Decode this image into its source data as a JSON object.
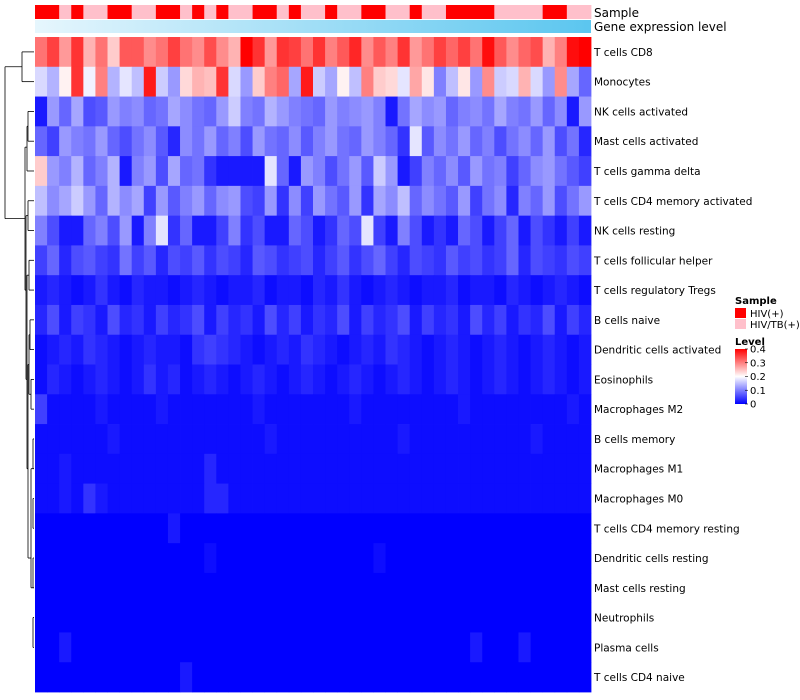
{
  "chart_data": {
    "type": "heatmap",
    "title": "",
    "rows": [
      "T cells CD8",
      "Monocytes",
      "NK cells activated",
      "Mast cells activated",
      "T cells gamma delta",
      "T cells CD4 memory activated",
      "NK cells resting",
      "T cells follicular helper",
      "T cells regulatory  Tregs",
      "B cells naive",
      "Dendritic cells activated",
      "Eosinophils",
      "Macrophages M2",
      "B cells memory",
      "Macrophages M1",
      "Macrophages M0",
      "T cells CD4 memory resting",
      "Dendritic cells resting",
      "Mast cells resting",
      "Neutrophils",
      "Plasma cells",
      "T cells CD4 naive"
    ],
    "n_columns": 46,
    "color_scale": {
      "title": "Level",
      "min": 0,
      "max": 0.4,
      "ticks": [
        "0.4",
        "0.3",
        "0.2",
        "0.1",
        "0"
      ],
      "low_color": "#0000ff",
      "mid_color": "#ffffff",
      "high_color": "#ff0000"
    },
    "annotations": {
      "sample": {
        "label": "Sample",
        "legend_title": "Sample",
        "categories": [
          {
            "name": "HIV(+)",
            "color": "#ff0000"
          },
          {
            "name": "HIV/TB(+)",
            "color": "#ffc0cb"
          }
        ],
        "values": [
          1,
          1,
          0,
          1,
          0,
          0,
          1,
          1,
          0,
          0,
          1,
          1,
          0,
          1,
          0,
          1,
          0,
          0,
          1,
          1,
          0,
          1,
          0,
          0,
          1,
          0,
          0,
          1,
          1,
          0,
          0,
          1,
          0,
          0,
          1,
          1,
          1,
          1,
          0,
          0,
          0,
          0,
          1,
          1,
          0,
          0
        ]
      },
      "expression": {
        "label": "Gene expression level",
        "color_start": "#e6f6fd",
        "color_end": "#5bc6ef"
      }
    },
    "row_levels": [
      [
        0.31,
        0.35,
        0.28,
        0.36,
        0.26,
        0.31,
        0.24,
        0.33,
        0.33,
        0.29,
        0.31,
        0.35,
        0.31,
        0.29,
        0.34,
        0.29,
        0.26,
        0.41,
        0.36,
        0.28,
        0.36,
        0.35,
        0.31,
        0.36,
        0.3,
        0.33,
        0.37,
        0.29,
        0.33,
        0.3,
        0.36,
        0.28,
        0.31,
        0.35,
        0.32,
        0.35,
        0.31,
        0.39,
        0.33,
        0.29,
        0.32,
        0.34,
        0.26,
        0.3,
        0.39,
        0.4
      ],
      [
        0.17,
        0.14,
        0.21,
        0.36,
        0.19,
        0.3,
        0.14,
        0.18,
        0.15,
        0.38,
        0.16,
        0.12,
        0.23,
        0.26,
        0.25,
        0.36,
        0.17,
        0.12,
        0.24,
        0.3,
        0.32,
        0.13,
        0.38,
        0.16,
        0.13,
        0.21,
        0.15,
        0.3,
        0.24,
        0.23,
        0.18,
        0.27,
        0.22,
        0.1,
        0.15,
        0.22,
        0.12,
        0.29,
        0.16,
        0.17,
        0.26,
        0.17,
        0.12,
        0.29,
        0.13,
        0.08
      ],
      [
        0.02,
        0.12,
        0.08,
        0.13,
        0.06,
        0.07,
        0.12,
        0.1,
        0.11,
        0.08,
        0.09,
        0.13,
        0.11,
        0.09,
        0.08,
        0.12,
        0.16,
        0.1,
        0.09,
        0.14,
        0.12,
        0.1,
        0.09,
        0.08,
        0.12,
        0.1,
        0.11,
        0.12,
        0.1,
        0.02,
        0.09,
        0.13,
        0.11,
        0.12,
        0.08,
        0.1,
        0.11,
        0.09,
        0.13,
        0.1,
        0.09,
        0.12,
        0.08,
        0.11,
        0.02,
        0.12
      ],
      [
        0.08,
        0.05,
        0.12,
        0.1,
        0.09,
        0.12,
        0.08,
        0.06,
        0.09,
        0.11,
        0.07,
        0.03,
        0.11,
        0.09,
        0.12,
        0.08,
        0.1,
        0.06,
        0.12,
        0.09,
        0.08,
        0.11,
        0.07,
        0.1,
        0.12,
        0.09,
        0.08,
        0.12,
        0.1,
        0.08,
        0.04,
        0.18,
        0.07,
        0.11,
        0.09,
        0.12,
        0.08,
        0.1,
        0.06,
        0.09,
        0.11,
        0.08,
        0.12,
        0.06,
        0.09,
        0.03
      ],
      [
        0.24,
        0.12,
        0.1,
        0.14,
        0.08,
        0.1,
        0.14,
        0.02,
        0.1,
        0.12,
        0.06,
        0.13,
        0.08,
        0.09,
        0.04,
        0.02,
        0.02,
        0.02,
        0.02,
        0.18,
        0.08,
        0.02,
        0.12,
        0.1,
        0.06,
        0.09,
        0.12,
        0.07,
        0.16,
        0.12,
        0.02,
        0.05,
        0.1,
        0.08,
        0.11,
        0.07,
        0.12,
        0.09,
        0.1,
        0.05,
        0.08,
        0.11,
        0.12,
        0.09,
        0.07,
        0.05
      ],
      [
        0.15,
        0.11,
        0.13,
        0.16,
        0.12,
        0.08,
        0.14,
        0.11,
        0.13,
        0.05,
        0.12,
        0.07,
        0.1,
        0.12,
        0.08,
        0.11,
        0.12,
        0.06,
        0.05,
        0.12,
        0.04,
        0.11,
        0.05,
        0.12,
        0.09,
        0.07,
        0.12,
        0.04,
        0.13,
        0.11,
        0.15,
        0.08,
        0.11,
        0.09,
        0.07,
        0.12,
        0.05,
        0.09,
        0.11,
        0.03,
        0.1,
        0.08,
        0.12,
        0.06,
        0.09,
        0.12
      ],
      [
        0.1,
        0.06,
        0.02,
        0.02,
        0.08,
        0.1,
        0.06,
        0.12,
        0.02,
        0.1,
        0.18,
        0.04,
        0.08,
        0.02,
        0.02,
        0.05,
        0.1,
        0.04,
        0.06,
        0.02,
        0.02,
        0.08,
        0.06,
        0.02,
        0.04,
        0.08,
        0.06,
        0.18,
        0.05,
        0.02,
        0.1,
        0.06,
        0.02,
        0.04,
        0.02,
        0.08,
        0.06,
        0.02,
        0.05,
        0.08,
        0.02,
        0.06,
        0.04,
        0.02,
        0.05,
        0.02
      ],
      [
        0.05,
        0.08,
        0.03,
        0.06,
        0.07,
        0.05,
        0.04,
        0.09,
        0.05,
        0.07,
        0.03,
        0.06,
        0.05,
        0.07,
        0.04,
        0.06,
        0.05,
        0.03,
        0.07,
        0.06,
        0.04,
        0.05,
        0.06,
        0.03,
        0.05,
        0.07,
        0.04,
        0.06,
        0.08,
        0.05,
        0.03,
        0.06,
        0.05,
        0.04,
        0.07,
        0.05,
        0.06,
        0.04,
        0.05,
        0.08,
        0.03,
        0.06,
        0.05,
        0.04,
        0.06,
        0.05
      ],
      [
        0.02,
        0.03,
        0.02,
        0.01,
        0.02,
        0.04,
        0.02,
        0.01,
        0.03,
        0.02,
        0.02,
        0.01,
        0.02,
        0.03,
        0.02,
        0.01,
        0.02,
        0.02,
        0.03,
        0.01,
        0.02,
        0.02,
        0.01,
        0.03,
        0.02,
        0.04,
        0.02,
        0.01,
        0.02,
        0.03,
        0.02,
        0.01,
        0.02,
        0.02,
        0.03,
        0.01,
        0.02,
        0.02,
        0.01,
        0.03,
        0.02,
        0.01,
        0.02,
        0.03,
        0.02,
        0.01
      ],
      [
        0.03,
        0.06,
        0.02,
        0.05,
        0.04,
        0.02,
        0.06,
        0.03,
        0.04,
        0.02,
        0.05,
        0.03,
        0.04,
        0.06,
        0.02,
        0.05,
        0.03,
        0.04,
        0.02,
        0.06,
        0.03,
        0.05,
        0.02,
        0.04,
        0.03,
        0.06,
        0.02,
        0.05,
        0.03,
        0.04,
        0.06,
        0.02,
        0.05,
        0.03,
        0.04,
        0.02,
        0.06,
        0.03,
        0.05,
        0.02,
        0.04,
        0.03,
        0.06,
        0.02,
        0.05,
        0.03
      ],
      [
        0.01,
        0.02,
        0.03,
        0.02,
        0.04,
        0.03,
        0.02,
        0.01,
        0.02,
        0.03,
        0.02,
        0.02,
        0.01,
        0.04,
        0.05,
        0.04,
        0.03,
        0.02,
        0.01,
        0.02,
        0.03,
        0.02,
        0.04,
        0.03,
        0.02,
        0.01,
        0.02,
        0.03,
        0.02,
        0.04,
        0.03,
        0.02,
        0.01,
        0.02,
        0.03,
        0.02,
        0.01,
        0.02,
        0.03,
        0.02,
        0.01,
        0.02,
        0.03,
        0.02,
        0.01,
        0.02
      ],
      [
        0.01,
        0.03,
        0.02,
        0.01,
        0.02,
        0.03,
        0.02,
        0.01,
        0.02,
        0.04,
        0.02,
        0.03,
        0.01,
        0.02,
        0.03,
        0.02,
        0.01,
        0.02,
        0.03,
        0.02,
        0.01,
        0.02,
        0.03,
        0.02,
        0.01,
        0.02,
        0.03,
        0.02,
        0.01,
        0.02,
        0.03,
        0.02,
        0.01,
        0.02,
        0.03,
        0.02,
        0.01,
        0.02,
        0.03,
        0.02,
        0.01,
        0.02,
        0.03,
        0.02,
        0.01,
        0.02
      ],
      [
        0.05,
        0.01,
        0.01,
        0.01,
        0.01,
        0.02,
        0.01,
        0.01,
        0.01,
        0.01,
        0.02,
        0.01,
        0.01,
        0.01,
        0.01,
        0.01,
        0.01,
        0.01,
        0.02,
        0.01,
        0.01,
        0.01,
        0.01,
        0.01,
        0.01,
        0.01,
        0.02,
        0.01,
        0.01,
        0.01,
        0.01,
        0.01,
        0.01,
        0.01,
        0.01,
        0.02,
        0.01,
        0.01,
        0.01,
        0.01,
        0.01,
        0.01,
        0.01,
        0.01,
        0.02,
        0.01
      ],
      [
        0.01,
        0.01,
        0.01,
        0.01,
        0.01,
        0.01,
        0.02,
        0.01,
        0.01,
        0.01,
        0.01,
        0.01,
        0.01,
        0.01,
        0.01,
        0.01,
        0.01,
        0.01,
        0.01,
        0.02,
        0.01,
        0.01,
        0.01,
        0.01,
        0.01,
        0.01,
        0.01,
        0.01,
        0.01,
        0.01,
        0.02,
        0.01,
        0.01,
        0.01,
        0.01,
        0.01,
        0.01,
        0.01,
        0.01,
        0.01,
        0.01,
        0.02,
        0.01,
        0.01,
        0.01,
        0.01
      ],
      [
        0.01,
        0.01,
        0.02,
        0.01,
        0.01,
        0.01,
        0.01,
        0.01,
        0.01,
        0.01,
        0.01,
        0.01,
        0.01,
        0.01,
        0.03,
        0.01,
        0.01,
        0.01,
        0.01,
        0.01,
        0.01,
        0.01,
        0.01,
        0.01,
        0.01,
        0.01,
        0.01,
        0.01,
        0.01,
        0.01,
        0.01,
        0.01,
        0.01,
        0.01,
        0.01,
        0.01,
        0.01,
        0.01,
        0.01,
        0.01,
        0.01,
        0.01,
        0.01,
        0.01,
        0.01,
        0.01
      ],
      [
        0.01,
        0.01,
        0.02,
        0.01,
        0.04,
        0.02,
        0.01,
        0.01,
        0.01,
        0.01,
        0.01,
        0.01,
        0.01,
        0.01,
        0.03,
        0.03,
        0.01,
        0.01,
        0.01,
        0.01,
        0.01,
        0.01,
        0.01,
        0.01,
        0.01,
        0.01,
        0.01,
        0.01,
        0.01,
        0.01,
        0.01,
        0.01,
        0.01,
        0.01,
        0.01,
        0.01,
        0.01,
        0.01,
        0.01,
        0.01,
        0.01,
        0.01,
        0.01,
        0.01,
        0.01,
        0.01
      ],
      [
        0.0,
        0.0,
        0.0,
        0.0,
        0.0,
        0.0,
        0.0,
        0.0,
        0.0,
        0.0,
        0.0,
        0.02,
        0.0,
        0.0,
        0.0,
        0.0,
        0.0,
        0.0,
        0.0,
        0.0,
        0.0,
        0.0,
        0.0,
        0.0,
        0.0,
        0.0,
        0.0,
        0.0,
        0.0,
        0.0,
        0.0,
        0.0,
        0.0,
        0.0,
        0.0,
        0.0,
        0.0,
        0.0,
        0.0,
        0.0,
        0.0,
        0.0,
        0.0,
        0.0,
        0.0,
        0.0
      ],
      [
        0.0,
        0.0,
        0.0,
        0.0,
        0.0,
        0.0,
        0.0,
        0.0,
        0.0,
        0.0,
        0.0,
        0.0,
        0.0,
        0.0,
        0.01,
        0.0,
        0.0,
        0.0,
        0.0,
        0.0,
        0.0,
        0.0,
        0.0,
        0.0,
        0.0,
        0.0,
        0.0,
        0.0,
        0.01,
        0.0,
        0.0,
        0.0,
        0.0,
        0.0,
        0.0,
        0.0,
        0.0,
        0.0,
        0.0,
        0.0,
        0.0,
        0.0,
        0.0,
        0.0,
        0.0,
        0.0
      ],
      [
        0.0,
        0.0,
        0.0,
        0.0,
        0.0,
        0.0,
        0.0,
        0.0,
        0.0,
        0.0,
        0.0,
        0.0,
        0.0,
        0.0,
        0.0,
        0.0,
        0.0,
        0.0,
        0.0,
        0.0,
        0.0,
        0.0,
        0.0,
        0.0,
        0.0,
        0.0,
        0.0,
        0.0,
        0.0,
        0.0,
        0.0,
        0.0,
        0.0,
        0.0,
        0.0,
        0.0,
        0.0,
        0.0,
        0.0,
        0.0,
        0.0,
        0.0,
        0.0,
        0.0,
        0.0,
        0.0
      ],
      [
        0.0,
        0.0,
        0.0,
        0.0,
        0.0,
        0.0,
        0.0,
        0.0,
        0.0,
        0.0,
        0.0,
        0.0,
        0.0,
        0.0,
        0.0,
        0.0,
        0.0,
        0.0,
        0.0,
        0.0,
        0.0,
        0.0,
        0.0,
        0.0,
        0.0,
        0.0,
        0.0,
        0.0,
        0.0,
        0.0,
        0.0,
        0.0,
        0.0,
        0.0,
        0.0,
        0.0,
        0.0,
        0.0,
        0.0,
        0.0,
        0.0,
        0.0,
        0.0,
        0.0,
        0.0,
        0.0
      ],
      [
        0.0,
        0.0,
        0.02,
        0.0,
        0.0,
        0.0,
        0.0,
        0.0,
        0.0,
        0.0,
        0.0,
        0.0,
        0.0,
        0.0,
        0.0,
        0.0,
        0.0,
        0.0,
        0.0,
        0.0,
        0.0,
        0.0,
        0.0,
        0.0,
        0.0,
        0.0,
        0.0,
        0.0,
        0.0,
        0.0,
        0.0,
        0.0,
        0.0,
        0.0,
        0.0,
        0.0,
        0.02,
        0.0,
        0.0,
        0.0,
        0.02,
        0.0,
        0.0,
        0.0,
        0.0,
        0.0
      ],
      [
        0.0,
        0.0,
        0.0,
        0.0,
        0.0,
        0.0,
        0.0,
        0.0,
        0.0,
        0.0,
        0.0,
        0.0,
        0.02,
        0.0,
        0.0,
        0.0,
        0.0,
        0.0,
        0.0,
        0.0,
        0.0,
        0.0,
        0.0,
        0.0,
        0.0,
        0.0,
        0.0,
        0.0,
        0.0,
        0.0,
        0.0,
        0.0,
        0.0,
        0.0,
        0.0,
        0.0,
        0.0,
        0.0,
        0.0,
        0.0,
        0.0,
        0.0,
        0.0,
        0.0,
        0.0,
        0.0
      ]
    ]
  }
}
